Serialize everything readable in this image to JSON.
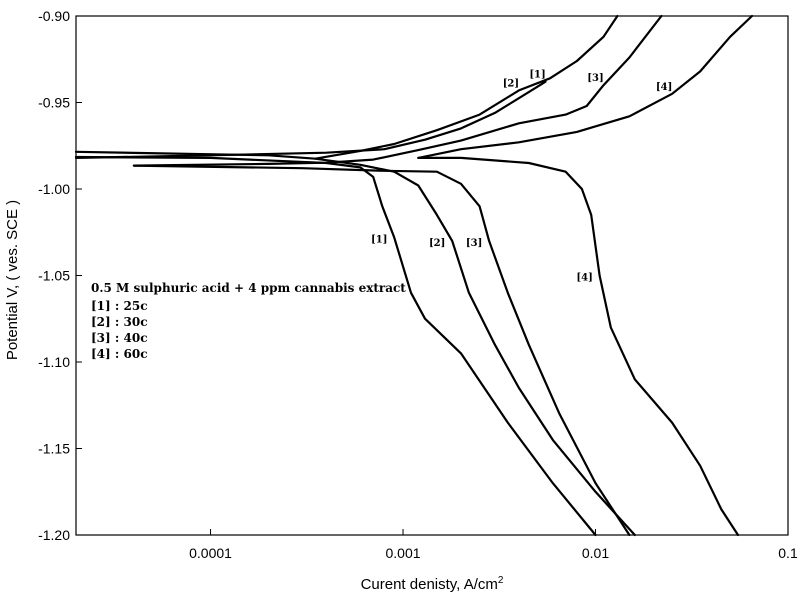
{
  "chart_data": {
    "type": "line",
    "xlabel": "Curent denisty, A/cm",
    "xlabel_sup": "2",
    "ylabel": "Potential  V, ( ves. SCE )",
    "x_scale": "log",
    "xlim": [
      2e-05,
      0.1
    ],
    "ylim": [
      -1.2,
      -0.9
    ],
    "x_ticks": [
      0.0001,
      0.001,
      0.01,
      0.1
    ],
    "x_tick_labels": [
      "0.0001",
      "0.001",
      "0.01",
      "0.1"
    ],
    "y_ticks": [
      -0.9,
      -0.95,
      -1.0,
      -1.05,
      -1.1,
      -1.15,
      -1.2
    ],
    "y_tick_labels": [
      "-0.90",
      "-0.95",
      "-1.00",
      "-1.05",
      "-1.10",
      "-1.15",
      "-1.20"
    ],
    "grid": false,
    "annotation": {
      "title": "0.5 M sulphuric acid + 4 ppm cannabis extract",
      "items": [
        "[1] : 25c",
        "[2] : 30c",
        "[3] : 40c",
        "[4] : 60c"
      ]
    },
    "series": [
      {
        "name": "[1]",
        "anodic_label": "[1]",
        "cathodic_label": "[1]",
        "anodic": [
          [
            2e-05,
            -0.982
          ],
          [
            0.0001,
            -0.9805
          ],
          [
            0.0004,
            -0.979
          ],
          [
            0.0008,
            -0.977
          ],
          [
            0.0013,
            -0.9715
          ],
          [
            0.002,
            -0.965
          ],
          [
            0.003,
            -0.956
          ],
          [
            0.0045,
            -0.944
          ],
          [
            0.0055,
            -0.938
          ]
        ],
        "cathodic": [
          [
            2e-05,
            -0.9815
          ],
          [
            0.0001,
            -0.982
          ],
          [
            0.0004,
            -0.985
          ],
          [
            0.0006,
            -0.9875
          ],
          [
            0.0007,
            -0.993
          ],
          [
            0.00078,
            -1.01
          ],
          [
            0.0009,
            -1.028
          ],
          [
            0.0011,
            -1.06
          ],
          [
            0.0013,
            -1.075
          ],
          [
            0.002,
            -1.095
          ],
          [
            0.0035,
            -1.135
          ],
          [
            0.006,
            -1.17
          ],
          [
            0.01,
            -1.2
          ]
        ]
      },
      {
        "name": "[2]",
        "anodic_label": "[2]",
        "cathodic_label": "[2]",
        "anodic": [
          [
            2e-05,
            -0.9785
          ],
          [
            0.0002,
            -0.9805
          ],
          [
            0.00035,
            -0.9825
          ],
          [
            0.0006,
            -0.978
          ],
          [
            0.0009,
            -0.974
          ],
          [
            0.0015,
            -0.966
          ],
          [
            0.0025,
            -0.957
          ],
          [
            0.004,
            -0.943
          ],
          [
            0.0058,
            -0.936
          ],
          [
            0.008,
            -0.926
          ],
          [
            0.011,
            -0.912
          ],
          [
            0.013,
            -0.9
          ]
        ],
        "cathodic": [
          [
            0.00035,
            -0.9825
          ],
          [
            0.0006,
            -0.986
          ],
          [
            0.0009,
            -0.99
          ],
          [
            0.0012,
            -0.998
          ],
          [
            0.0015,
            -1.015
          ],
          [
            0.0018,
            -1.03
          ],
          [
            0.0022,
            -1.06
          ],
          [
            0.003,
            -1.09
          ],
          [
            0.004,
            -1.115
          ],
          [
            0.006,
            -1.145
          ],
          [
            0.01,
            -1.175
          ],
          [
            0.016,
            -1.2
          ]
        ]
      },
      {
        "name": "[3]",
        "anodic_label": "[3]",
        "cathodic_label": "[3]",
        "anodic": [
          [
            4e-05,
            -0.9865
          ],
          [
            0.0002,
            -0.9855
          ],
          [
            0.0004,
            -0.9848
          ],
          [
            0.0007,
            -0.983
          ],
          [
            0.0012,
            -0.9775
          ],
          [
            0.002,
            -0.972
          ],
          [
            0.004,
            -0.962
          ],
          [
            0.007,
            -0.957
          ],
          [
            0.009,
            -0.952
          ],
          [
            0.011,
            -0.94
          ],
          [
            0.015,
            -0.924
          ],
          [
            0.022,
            -0.9
          ]
        ],
        "cathodic": [
          [
            4e-05,
            -0.9865
          ],
          [
            0.0003,
            -0.988
          ],
          [
            0.0008,
            -0.9895
          ],
          [
            0.0015,
            -0.99
          ],
          [
            0.002,
            -0.997
          ],
          [
            0.0025,
            -1.01
          ],
          [
            0.0028,
            -1.03
          ],
          [
            0.0035,
            -1.06
          ],
          [
            0.0045,
            -1.09
          ],
          [
            0.0065,
            -1.13
          ],
          [
            0.01,
            -1.17
          ],
          [
            0.015,
            -1.2
          ]
        ]
      },
      {
        "name": "[4]",
        "anodic_label": "[4]",
        "cathodic_label": "[4]",
        "anodic": [
          [
            0.0012,
            -0.982
          ],
          [
            0.002,
            -0.977
          ],
          [
            0.004,
            -0.973
          ],
          [
            0.008,
            -0.967
          ],
          [
            0.015,
            -0.958
          ],
          [
            0.025,
            -0.945
          ],
          [
            0.035,
            -0.932
          ],
          [
            0.05,
            -0.912
          ],
          [
            0.065,
            -0.9
          ]
        ],
        "cathodic": [
          [
            0.0012,
            -0.982
          ],
          [
            0.002,
            -0.982
          ],
          [
            0.0045,
            -0.985
          ],
          [
            0.007,
            -0.99
          ],
          [
            0.0085,
            -1.0
          ],
          [
            0.0095,
            -1.015
          ],
          [
            0.0105,
            -1.05
          ],
          [
            0.012,
            -1.08
          ],
          [
            0.016,
            -1.11
          ],
          [
            0.025,
            -1.135
          ],
          [
            0.035,
            -1.16
          ],
          [
            0.045,
            -1.185
          ],
          [
            0.055,
            -1.2
          ]
        ]
      }
    ]
  }
}
